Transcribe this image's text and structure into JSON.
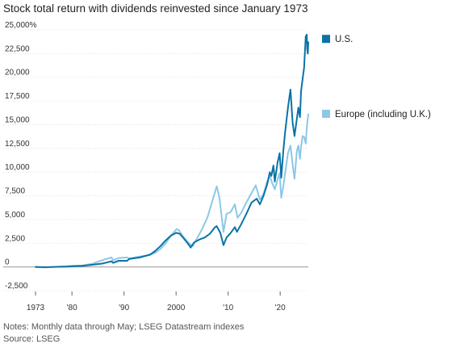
{
  "title": "Stock total return with dividends reinvested since January 1973",
  "notes": {
    "line1": "Notes: Monthly data through May; LSEG Datastream indexes",
    "line2": "Source: LSEG"
  },
  "chart_data": {
    "type": "line",
    "title": "Stock total return with dividends reinvested since January 1973",
    "xlabel": "",
    "ylabel": "",
    "xlim": [
      1973,
      2025.4
    ],
    "ylim": [
      -2500,
      25000
    ],
    "y_ticks": [
      {
        "value": 25000,
        "label": "25,000%"
      },
      {
        "value": 22500,
        "label": "22,500"
      },
      {
        "value": 20000,
        "label": "20,000"
      },
      {
        "value": 17500,
        "label": "17,500"
      },
      {
        "value": 15000,
        "label": "15,000"
      },
      {
        "value": 12500,
        "label": "12,500"
      },
      {
        "value": 10000,
        "label": "10,000"
      },
      {
        "value": 7500,
        "label": "7,500"
      },
      {
        "value": 5000,
        "label": "5,000"
      },
      {
        "value": 2500,
        "label": "2,500"
      },
      {
        "value": 0,
        "label": "0"
      },
      {
        "value": -2500,
        "label": "-2,500"
      }
    ],
    "x_ticks": [
      {
        "value": 1973,
        "label": "1973"
      },
      {
        "value": 1980,
        "label": "'80"
      },
      {
        "value": 1990,
        "label": "'90"
      },
      {
        "value": 2000,
        "label": "2000"
      },
      {
        "value": 2010,
        "label": "'10"
      },
      {
        "value": 2020,
        "label": "'20"
      }
    ],
    "grid": true,
    "legend": "right",
    "series": [
      {
        "name": "U.S.",
        "color": "#0b73a6",
        "points": [
          [
            1973,
            0
          ],
          [
            1975,
            -20
          ],
          [
            1977,
            10
          ],
          [
            1979,
            40
          ],
          [
            1980,
            80
          ],
          [
            1982,
            110
          ],
          [
            1984,
            230
          ],
          [
            1986,
            380
          ],
          [
            1987.6,
            600
          ],
          [
            1987.9,
            430
          ],
          [
            1989,
            650
          ],
          [
            1990.6,
            650
          ],
          [
            1991,
            850
          ],
          [
            1993,
            1000
          ],
          [
            1995,
            1300
          ],
          [
            1996,
            1700
          ],
          [
            1997,
            2200
          ],
          [
            1998,
            2800
          ],
          [
            1999,
            3300
          ],
          [
            2000,
            3600
          ],
          [
            2000.7,
            3500
          ],
          [
            2001.5,
            3000
          ],
          [
            2002.5,
            2300
          ],
          [
            2002.8,
            2050
          ],
          [
            2003.5,
            2600
          ],
          [
            2004.5,
            2900
          ],
          [
            2005.5,
            3100
          ],
          [
            2006.5,
            3500
          ],
          [
            2007.5,
            4200
          ],
          [
            2007.8,
            4300
          ],
          [
            2008.5,
            3600
          ],
          [
            2009.1,
            2300
          ],
          [
            2009.7,
            3100
          ],
          [
            2010.5,
            3600
          ],
          [
            2011.3,
            4200
          ],
          [
            2011.7,
            3700
          ],
          [
            2012.5,
            4500
          ],
          [
            2013.5,
            5600
          ],
          [
            2014.5,
            6800
          ],
          [
            2015.5,
            7200
          ],
          [
            2016.1,
            6600
          ],
          [
            2016.8,
            7500
          ],
          [
            2017.5,
            8700
          ],
          [
            2018.0,
            10000
          ],
          [
            2018.3,
            9600
          ],
          [
            2018.7,
            10700
          ],
          [
            2018.97,
            9000
          ],
          [
            2019.5,
            11000
          ],
          [
            2019.9,
            12000
          ],
          [
            2020.2,
            9400
          ],
          [
            2020.6,
            12200
          ],
          [
            2020.9,
            14000
          ],
          [
            2021.5,
            16800
          ],
          [
            2021.97,
            18700
          ],
          [
            2022.4,
            15200
          ],
          [
            2022.75,
            13800
          ],
          [
            2023.2,
            15600
          ],
          [
            2023.5,
            16800
          ],
          [
            2023.8,
            15800
          ],
          [
            2024.0,
            18500
          ],
          [
            2024.3,
            19800
          ],
          [
            2024.6,
            21000
          ],
          [
            2024.9,
            24300
          ],
          [
            2025.1,
            24500
          ],
          [
            2025.2,
            22900
          ],
          [
            2025.3,
            22500
          ],
          [
            2025.4,
            23700
          ]
        ]
      },
      {
        "name": "Europe (including U.K.)",
        "color": "#8cc8e6",
        "points": [
          [
            1973,
            0
          ],
          [
            1974.5,
            -60
          ],
          [
            1976,
            -20
          ],
          [
            1978,
            50
          ],
          [
            1980,
            120
          ],
          [
            1982,
            150
          ],
          [
            1984,
            350
          ],
          [
            1986,
            750
          ],
          [
            1987.6,
            1000
          ],
          [
            1987.9,
            700
          ],
          [
            1989,
            950
          ],
          [
            1990.6,
            1000
          ],
          [
            1991,
            900
          ],
          [
            1993,
            1100
          ],
          [
            1994.5,
            1200
          ],
          [
            1996,
            1500
          ],
          [
            1997,
            1900
          ],
          [
            1998,
            2500
          ],
          [
            1999,
            3300
          ],
          [
            2000.1,
            4000
          ],
          [
            2000.5,
            3900
          ],
          [
            2001.5,
            3100
          ],
          [
            2002.5,
            2500
          ],
          [
            2003.2,
            2200
          ],
          [
            2004,
            3000
          ],
          [
            2005,
            4000
          ],
          [
            2006,
            5200
          ],
          [
            2007,
            7000
          ],
          [
            2007.8,
            8500
          ],
          [
            2008.3,
            7400
          ],
          [
            2009.1,
            3700
          ],
          [
            2009.7,
            5600
          ],
          [
            2010.5,
            5800
          ],
          [
            2011.3,
            6600
          ],
          [
            2011.8,
            5200
          ],
          [
            2012.5,
            5700
          ],
          [
            2013.5,
            6800
          ],
          [
            2014.5,
            7800
          ],
          [
            2015.3,
            8600
          ],
          [
            2016.1,
            7100
          ],
          [
            2016.8,
            7700
          ],
          [
            2017.5,
            9000
          ],
          [
            2018.0,
            9600
          ],
          [
            2018.5,
            8800
          ],
          [
            2018.97,
            8200
          ],
          [
            2019.5,
            9200
          ],
          [
            2019.9,
            9900
          ],
          [
            2020.2,
            7300
          ],
          [
            2020.6,
            8500
          ],
          [
            2020.9,
            9700
          ],
          [
            2021.5,
            12000
          ],
          [
            2021.97,
            12800
          ],
          [
            2022.4,
            10800
          ],
          [
            2022.75,
            9300
          ],
          [
            2023.2,
            12200
          ],
          [
            2023.5,
            12800
          ],
          [
            2023.8,
            11400
          ],
          [
            2024.0,
            12700
          ],
          [
            2024.3,
            13800
          ],
          [
            2024.6,
            13700
          ],
          [
            2024.9,
            13000
          ],
          [
            2025.1,
            14600
          ],
          [
            2025.25,
            15400
          ],
          [
            2025.4,
            16100
          ]
        ]
      }
    ]
  }
}
